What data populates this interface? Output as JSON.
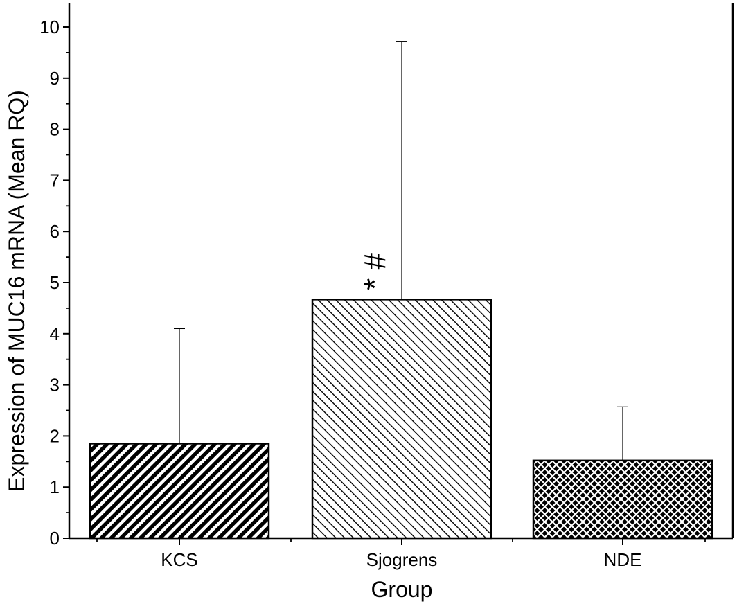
{
  "chart_data": {
    "type": "bar",
    "categories": [
      "KCS",
      "Sjogrens",
      "NDE"
    ],
    "values": [
      1.85,
      4.67,
      1.52
    ],
    "error_upper": [
      4.1,
      9.72,
      2.57
    ],
    "xlabel": "Group",
    "ylabel": "Expression of MUC16 mRNA (Mean RQ)",
    "ylim": [
      0,
      10.5
    ],
    "yticks": [
      "0",
      "1",
      "2",
      "3",
      "4",
      "5",
      "6",
      "7",
      "8",
      "9",
      "10"
    ],
    "annotation": "* #",
    "grid": false,
    "legend": "none",
    "patterns": [
      "dense-diagonal",
      "sparse-diagonal",
      "crosshatch"
    ]
  }
}
